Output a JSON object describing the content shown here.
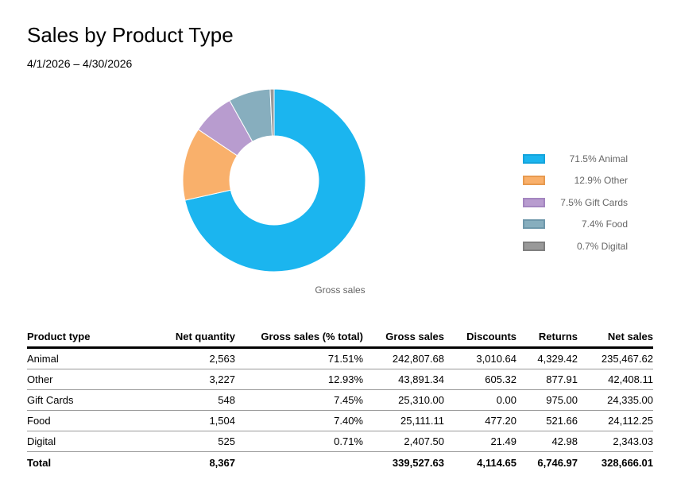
{
  "header": {
    "title": "Sales by Product Type",
    "date_range": "4/1/2026 – 4/30/2026"
  },
  "chart_data": {
    "type": "pie",
    "donut": true,
    "caption": "Gross sales",
    "legend_position": "right",
    "categories": [
      "Animal",
      "Other",
      "Gift Cards",
      "Food",
      "Digital"
    ],
    "values": [
      71.5,
      12.9,
      7.5,
      7.4,
      0.7
    ],
    "legend_labels": [
      "71.5% Animal",
      "12.9% Other",
      "7.5% Gift Cards",
      "7.4% Food",
      "0.7% Digital"
    ],
    "colors": [
      "#1bb5ef",
      "#f9b06b",
      "#b89ccf",
      "#87aebe",
      "#999999"
    ],
    "stroke_colors": [
      "#14a4dc",
      "#e79a4f",
      "#a486c0",
      "#6f98ab",
      "#808080"
    ]
  },
  "table": {
    "columns": [
      "Product type",
      "Net quantity",
      "Gross sales (% total)",
      "Gross sales",
      "Discounts",
      "Returns",
      "Net sales"
    ],
    "rows": [
      [
        "Animal",
        "2,563",
        "71.51%",
        "242,807.68",
        "3,010.64",
        "4,329.42",
        "235,467.62"
      ],
      [
        "Other",
        "3,227",
        "12.93%",
        "43,891.34",
        "605.32",
        "877.91",
        "42,408.11"
      ],
      [
        "Gift Cards",
        "548",
        "7.45%",
        "25,310.00",
        "0.00",
        "975.00",
        "24,335.00"
      ],
      [
        "Food",
        "1,504",
        "7.40%",
        "25,111.11",
        "477.20",
        "521.66",
        "24,112.25"
      ],
      [
        "Digital",
        "525",
        "0.71%",
        "2,407.50",
        "21.49",
        "42.98",
        "2,343.03"
      ]
    ],
    "total": [
      "Total",
      "8,367",
      "",
      "339,527.63",
      "4,114.65",
      "6,746.97",
      "328,666.01"
    ]
  }
}
